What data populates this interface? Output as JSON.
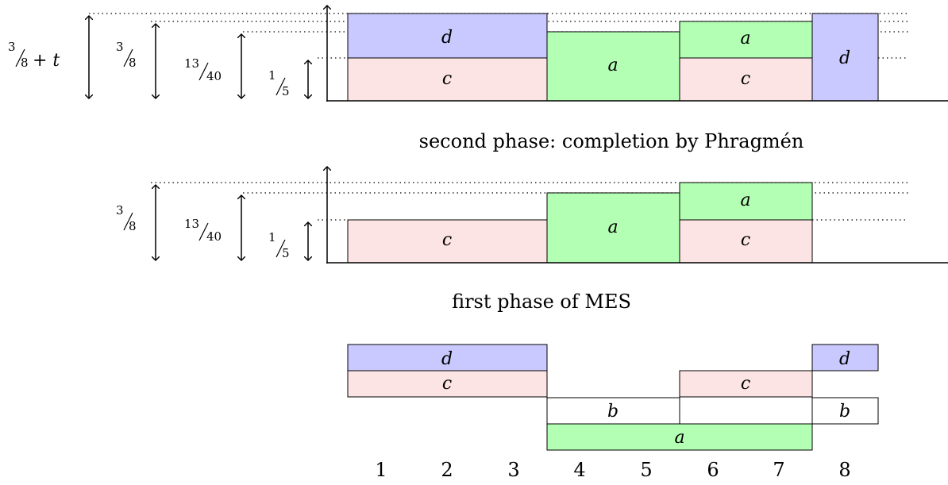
{
  "colors": {
    "c": "#fde4e4",
    "a": "#b3ffb3",
    "d": "#c9c9ff",
    "b": "#ffffff",
    "stroke": "#000000"
  },
  "captions": {
    "second": "second phase: completion by Phragmén",
    "first": "first phase of MES"
  },
  "labels": {
    "three_eighths_t_num": "3",
    "three_eighths_t_den": "8",
    "three_eighths_t_suffix": "+ t",
    "three_eighths_num": "3",
    "three_eighths_den": "8",
    "thirteen_forty_num": "13",
    "thirteen_forty_den": "40",
    "one_fifth_num": "1",
    "one_fifth_den": "5"
  },
  "bar_labels": {
    "a": "a",
    "b": "b",
    "c": "c",
    "d": "d"
  },
  "voter_numbers": [
    "1",
    "2",
    "3",
    "4",
    "5",
    "6",
    "7",
    "8"
  ]
}
